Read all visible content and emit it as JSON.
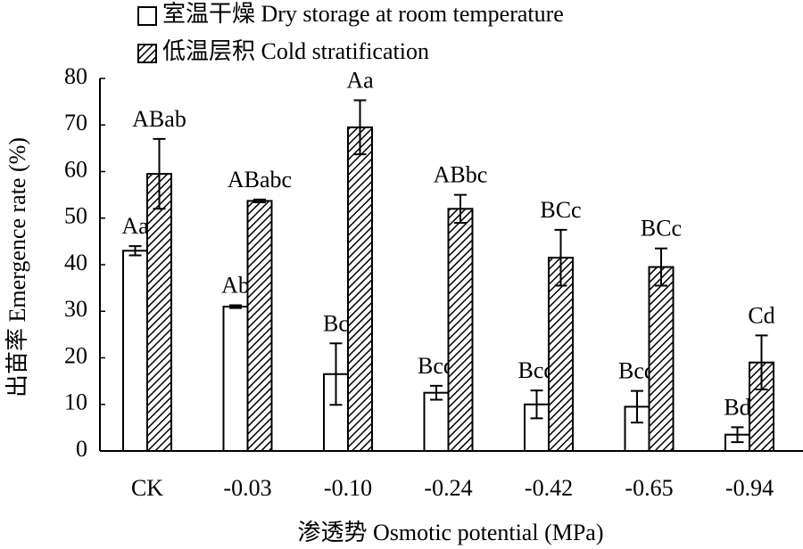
{
  "chart_data": {
    "type": "bar",
    "categories": [
      "CK",
      "-0.03",
      "-0.10",
      "-0.24",
      "-0.42",
      "-0.65",
      "-0.94"
    ],
    "series": [
      {
        "name": "室温干燥 Dry storage at room temperature",
        "color": "#ffffff",
        "values": [
          43,
          31,
          16.5,
          12.5,
          10,
          9.5,
          3.5
        ],
        "errors": [
          1,
          0.3,
          6.6,
          1.5,
          3,
          3.4,
          1.6
        ],
        "labels": [
          "Aa",
          "Ab",
          "Bc",
          "Bcd",
          "Bcd",
          "Bcd",
          "Bd"
        ]
      },
      {
        "name": "低温层积 Cold stratification",
        "color": "#000000",
        "pattern": "hatch",
        "values": [
          59.5,
          53.7,
          69.5,
          52,
          41.5,
          39.5,
          19
        ],
        "errors": [
          7.5,
          0.3,
          5.8,
          3,
          6,
          4,
          5.8
        ],
        "labels": [
          "ABab",
          "ABabc",
          "Aa",
          "ABbc",
          "BCc",
          "BCc",
          "Cd"
        ]
      }
    ],
    "ylim": [
      0,
      80
    ],
    "yticks": [
      0,
      10,
      20,
      30,
      40,
      50,
      60,
      70,
      80
    ],
    "xlabel": "渗透势 Osmotic potential (MPa)",
    "ylabel": "出苗率 Emergence rate (%)",
    "legend": "top-left"
  }
}
